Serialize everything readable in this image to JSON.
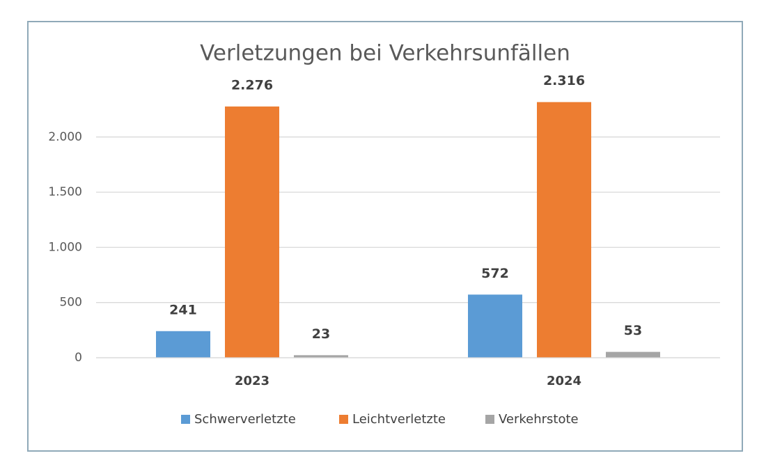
{
  "chart_data": {
    "type": "bar",
    "title": "Verletzungen bei Verkehrsunfällen",
    "categories": [
      "2023",
      "2024"
    ],
    "series": [
      {
        "name": "Schwerverletzte",
        "color": "#5b9bd5",
        "values": [
          241,
          572
        ]
      },
      {
        "name": "Leichtverletzte",
        "color": "#ed7d31",
        "values": [
          2276,
          2316
        ],
        "value_labels": [
          "2.276",
          "2.316"
        ]
      },
      {
        "name": "Verkehrstote",
        "color": "#a5a5a5",
        "values": [
          23,
          53
        ]
      }
    ],
    "ylim": [
      0,
      2500
    ],
    "yticks": [
      0,
      500,
      {
        "value": 1000,
        "label": "1.000"
      },
      {
        "value": 1500,
        "label": "1.500"
      },
      {
        "value": 2000,
        "label": "2.000"
      }
    ],
    "grid": true,
    "legend": "bottom"
  }
}
